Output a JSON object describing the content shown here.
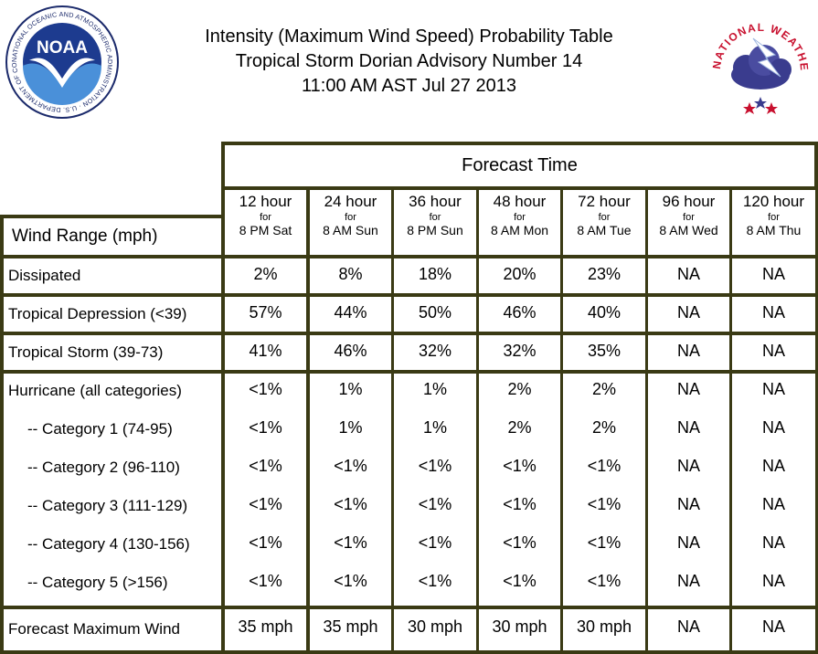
{
  "title_lines": [
    "Intensity (Maximum Wind Speed) Probability Table",
    "Tropical Storm Dorian Advisory Number 14",
    "11:00 AM AST Jul 27 2013"
  ],
  "logos": {
    "noaa_text": "NOAA",
    "noaa_ring": "NATIONAL OCEANIC AND ATMOSPHERIC ADMINISTRATION · U.S. DEPARTMENT OF COMMERCE",
    "nws_ring": "NATIONAL WEATHER SERVICE"
  },
  "table": {
    "forecast_time_label": "Forecast Time",
    "wind_range_label": "Wind Range (mph)",
    "columns": [
      {
        "hour": "12 hour",
        "for": "for",
        "time": "8 PM Sat"
      },
      {
        "hour": "24 hour",
        "for": "for",
        "time": "8 AM Sun"
      },
      {
        "hour": "36 hour",
        "for": "for",
        "time": "8 PM Sun"
      },
      {
        "hour": "48 hour",
        "for": "for",
        "time": "8 AM Mon"
      },
      {
        "hour": "72 hour",
        "for": "for",
        "time": "8 AM Tue"
      },
      {
        "hour": "96 hour",
        "for": "for",
        "time": "8 AM Wed"
      },
      {
        "hour": "120 hour",
        "for": "for",
        "time": "8 AM Thu"
      }
    ],
    "rows": [
      {
        "label": "Dissipated",
        "values": [
          "2%",
          "8%",
          "18%",
          "20%",
          "23%",
          "NA",
          "NA"
        ]
      },
      {
        "label": "Tropical Depression (<39)",
        "values": [
          "57%",
          "44%",
          "50%",
          "46%",
          "40%",
          "NA",
          "NA"
        ]
      },
      {
        "label": "Tropical Storm (39-73)",
        "values": [
          "41%",
          "46%",
          "32%",
          "32%",
          "35%",
          "NA",
          "NA"
        ]
      },
      {
        "label": "Hurricane (all categories)",
        "values": [
          "<1%",
          "1%",
          "1%",
          "2%",
          "2%",
          "NA",
          "NA"
        ]
      },
      {
        "label": "-- Category 1 (74-95)",
        "values": [
          "<1%",
          "1%",
          "1%",
          "2%",
          "2%",
          "NA",
          "NA"
        ]
      },
      {
        "label": "-- Category 2 (96-110)",
        "values": [
          "<1%",
          "<1%",
          "<1%",
          "<1%",
          "<1%",
          "NA",
          "NA"
        ]
      },
      {
        "label": "-- Category 3 (111-129)",
        "values": [
          "<1%",
          "<1%",
          "<1%",
          "<1%",
          "<1%",
          "NA",
          "NA"
        ]
      },
      {
        "label": "-- Category 4 (130-156)",
        "values": [
          "<1%",
          "<1%",
          "<1%",
          "<1%",
          "<1%",
          "NA",
          "NA"
        ]
      },
      {
        "label": "-- Category 5 (>156)",
        "values": [
          "<1%",
          "<1%",
          "<1%",
          "<1%",
          "<1%",
          "NA",
          "NA"
        ]
      }
    ],
    "forecast_max_wind": {
      "label": "Forecast Maximum Wind",
      "values": [
        "35 mph",
        "35 mph",
        "30 mph",
        "30 mph",
        "30 mph",
        "NA",
        "NA"
      ]
    }
  }
}
